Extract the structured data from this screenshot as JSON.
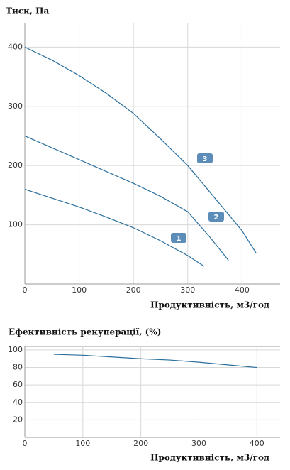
{
  "chart_data": [
    {
      "type": "line",
      "title": "Тиск, Па",
      "x_label": "Продуктивність, м3/год",
      "xlim": [
        0,
        470
      ],
      "xticks": [
        0,
        100,
        200,
        300,
        400
      ],
      "ylim": [
        0,
        440
      ],
      "yticks": [
        100,
        200,
        300,
        400
      ],
      "grid": true,
      "series": [
        {
          "name": "1",
          "color": "#2a6f9e",
          "x": [
            0,
            50,
            100,
            150,
            200,
            250,
            300,
            330
          ],
          "values": [
            160,
            145,
            130,
            113,
            95,
            73,
            48,
            30
          ]
        },
        {
          "name": "2",
          "color": "#2a6f9e",
          "x": [
            0,
            50,
            100,
            150,
            200,
            250,
            300,
            340,
            375
          ],
          "values": [
            250,
            230,
            210,
            190,
            170,
            148,
            122,
            80,
            40
          ]
        },
        {
          "name": "3",
          "color": "#2a6f9e",
          "x": [
            0,
            50,
            100,
            150,
            200,
            250,
            300,
            350,
            400,
            426
          ],
          "values": [
            400,
            378,
            352,
            322,
            288,
            245,
            200,
            145,
            90,
            52
          ]
        }
      ]
    },
    {
      "type": "line",
      "title": "Ефективність рекуперації, (%)",
      "x_label": "Продуктивність, м3/год",
      "xlim": [
        0,
        440
      ],
      "xticks": [
        0,
        100,
        200,
        300,
        400
      ],
      "ylim": [
        0,
        104
      ],
      "yticks": [
        20,
        40,
        60,
        80,
        100
      ],
      "grid": true,
      "series": [
        {
          "color": "#2a6f9e",
          "x": [
            50,
            100,
            150,
            200,
            250,
            300,
            350,
            400
          ],
          "values": [
            95,
            94,
            92,
            90,
            88.5,
            86,
            83,
            80
          ]
        }
      ]
    }
  ]
}
